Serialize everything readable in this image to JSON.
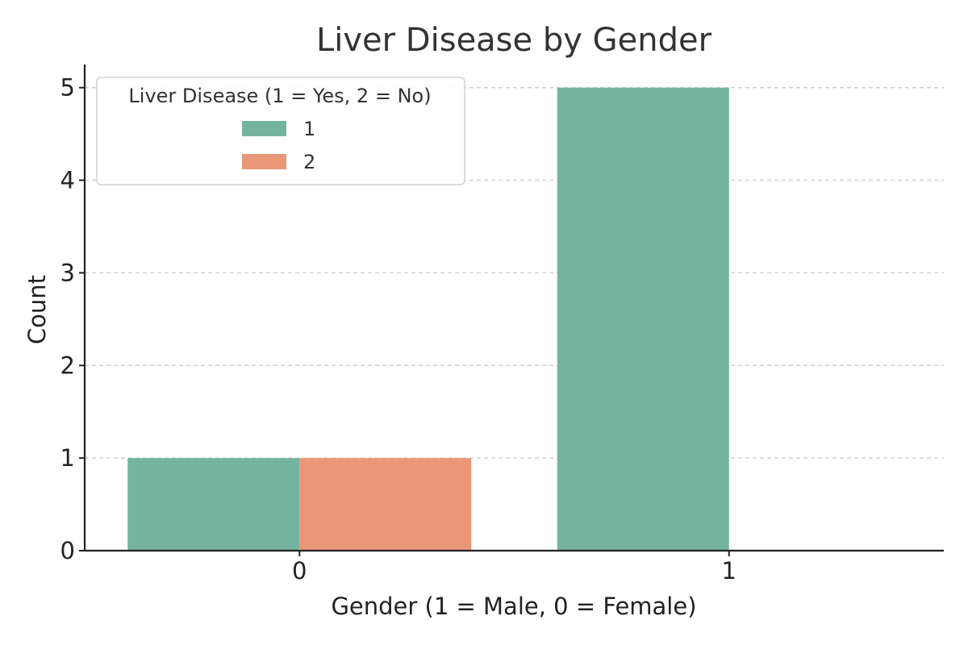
{
  "chart_data": {
    "type": "bar",
    "title": "Liver Disease by Gender",
    "xlabel": "Gender (1 = Male, 0 = Female)",
    "ylabel": "Count",
    "categories": [
      "0",
      "1"
    ],
    "series": [
      {
        "name": "1",
        "values": [
          1,
          5
        ],
        "color": "#74b49f"
      },
      {
        "name": "2",
        "values": [
          1,
          0
        ],
        "color": "#e99776"
      }
    ],
    "ylim": [
      0,
      5.25
    ],
    "yticks": [
      0,
      1,
      2,
      3,
      4,
      5
    ],
    "grid": "y-dashed",
    "legend": {
      "title": "Liver Disease (1 = Yes, 2 = No)",
      "placement": "top-left"
    }
  }
}
